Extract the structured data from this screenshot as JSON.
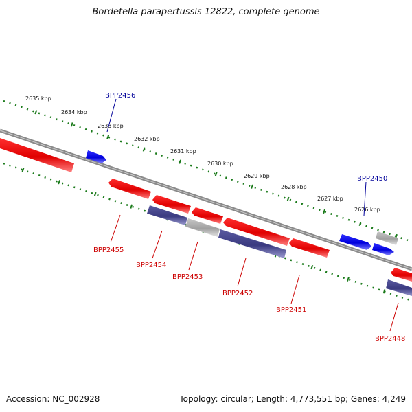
{
  "title": "Bordetella parapertussis 12822, complete genome",
  "footer": {
    "accession": "Accession: NC_002928",
    "topology": "Topology: circular; Length: 4,773,551 bp; Genes: 4,249"
  },
  "colors": {
    "backbone": "#8a8a8a",
    "scale_dots": "#1a7a1a",
    "forward_gene": "#1010e0",
    "reverse_gene": "#e00000",
    "other_gene": "#4a4a8e",
    "pseudo_gene": "#b0b0b0",
    "forward_label": "#000099",
    "reverse_label": "#cc0000"
  },
  "scale": {
    "kbp_labels": [
      "2635 kbp",
      "2634 kbp",
      "2633 kbp",
      "2632 kbp",
      "2631 kbp",
      "2630 kbp",
      "2629 kbp",
      "2628 kbp",
      "2627 kbp",
      "2626 kbp"
    ]
  },
  "gene_labels": {
    "forward": [
      "BPP2456",
      "BPP2450"
    ],
    "reverse": [
      "BPP2455",
      "BPP2454",
      "BPP2453",
      "BPP2452",
      "BPP2451",
      "BPP2448"
    ]
  }
}
